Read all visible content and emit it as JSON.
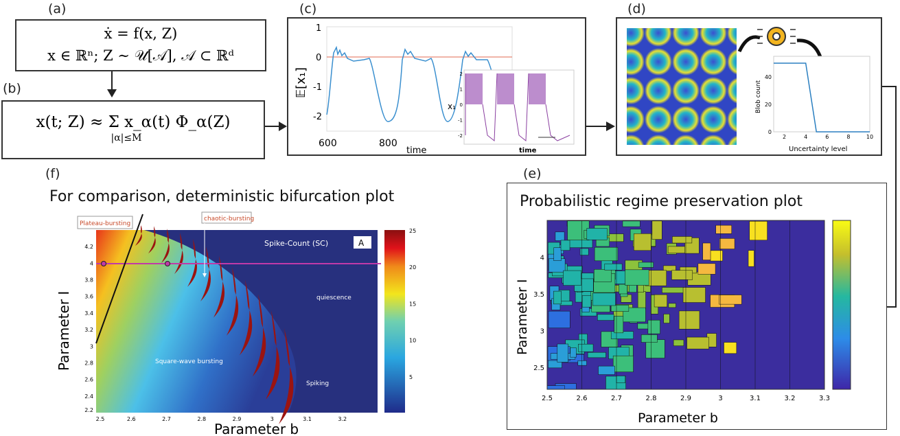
{
  "panels": {
    "a": {
      "label": "(a)",
      "eq1": "ẋ = f(x, Z)",
      "eq2": "x ∈ ℝⁿ; Z ∼ 𝒰[𝒜], 𝒜 ⊂ ℝᵈ"
    },
    "b": {
      "label": "(b)",
      "eq": "x(t; Z) ≈ Σ x_α(t) Φ_α(Z)",
      "sum_sub": "|α|≤M"
    },
    "c": {
      "label": "(c)",
      "ylabel": "𝔼[x₁]",
      "xlabel": "time",
      "xticks": [
        "600",
        "800"
      ],
      "yticks": [
        "1",
        "0",
        "-1",
        "-2"
      ],
      "inset": {
        "ylabel": "x₁",
        "xlabel": "time",
        "yticks": [
          "2",
          "1",
          "0",
          "-1",
          "-2"
        ]
      },
      "colors": {
        "mean": "#3a8fcf",
        "zero_line": "#e06a50",
        "inset": "#8a3fa0"
      }
    },
    "d": {
      "label": "(d)",
      "icon": "gear-ai-icon",
      "chart_data": {
        "type": "line",
        "xlabel": "Uncertainty level",
        "ylabel": "Blob count",
        "x": [
          1,
          2,
          3,
          4,
          5,
          6,
          7,
          8,
          9,
          10
        ],
        "y": [
          50,
          50,
          50,
          50,
          0,
          0,
          0,
          0,
          0,
          0
        ],
        "xticks": [
          "2",
          "4",
          "6",
          "8",
          "10"
        ],
        "yticks": [
          "0",
          "20",
          "40"
        ],
        "xlim": [
          1,
          10
        ],
        "ylim": [
          0,
          55
        ]
      }
    },
    "e": {
      "label": "(e)",
      "title": "Probabilistic regime preservation plot",
      "xlabel": "Parameter b",
      "ylabel": "Parameter I",
      "xticks": [
        "2.5",
        "2.6",
        "2.7",
        "2.8",
        "2.9",
        "3",
        "3.1",
        "3.2",
        "3.3"
      ],
      "yticks": [
        "4",
        "3.5",
        "3",
        "2.5"
      ]
    },
    "f": {
      "label": "(f)",
      "title": "For comparison, deterministic bifurcation plot",
      "xlabel": "Parameter b",
      "ylabel": "Parameter I",
      "xticks": [
        "2.5",
        "2.6",
        "2.7",
        "2.8",
        "2.9",
        "3",
        "3.1",
        "3.2"
      ],
      "yticks": [
        "4.2",
        "4",
        "3.8",
        "3.6",
        "3.4",
        "3.2",
        "3",
        "2.8",
        "2.6",
        "2.4",
        "2.2"
      ],
      "cbar_ticks": [
        "25",
        "20",
        "15",
        "10",
        "5"
      ],
      "annotations": {
        "plateau": "Plateau-bursting",
        "chaotic": "chaotic-bursting",
        "sc": "Spike-Count (SC)",
        "panel": "A",
        "quiescence": "quiescence",
        "square": "Square-wave bursting",
        "spiking": "Spiking"
      },
      "colors": {
        "line": "#c03aa8",
        "background": "#27307e",
        "chaotic": "#9b1410"
      }
    }
  }
}
